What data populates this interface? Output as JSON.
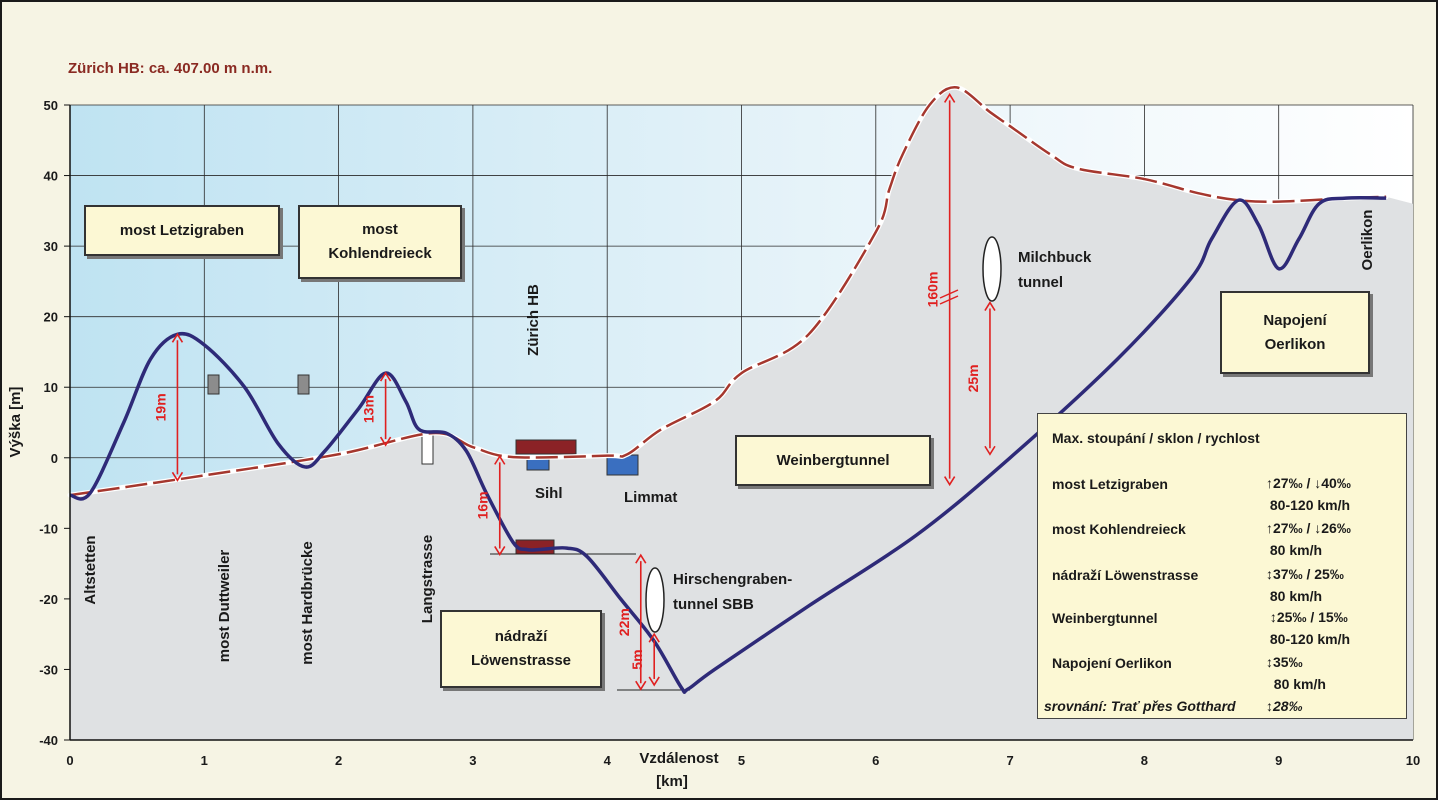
{
  "header": "Zürich HB: ca. 407.00 m n.m.",
  "chart_data": {
    "type": "line",
    "xlabel": "Vzdálenost\n[km]",
    "ylabel": "Výška [m]",
    "xlim": [
      0,
      10
    ],
    "ylim": [
      -40,
      50
    ],
    "xticks": [
      "0",
      "1",
      "2",
      "3",
      "4",
      "5",
      "6",
      "7",
      "8",
      "9",
      "10"
    ],
    "yticks": [
      "50",
      "40",
      "30",
      "20",
      "10",
      "0",
      "-10",
      "-20",
      "-30",
      "-40"
    ],
    "grid": true,
    "series": [
      {
        "name": "track",
        "color": "#2e2a78",
        "points": [
          [
            0,
            -5.3
          ],
          [
            0.15,
            -5
          ],
          [
            0.4,
            5
          ],
          [
            0.6,
            14
          ],
          [
            0.8,
            17.5
          ],
          [
            1.0,
            16
          ],
          [
            1.3,
            10
          ],
          [
            1.55,
            2
          ],
          [
            1.75,
            -1.3
          ],
          [
            1.9,
            1
          ],
          [
            2.15,
            7
          ],
          [
            2.35,
            12
          ],
          [
            2.5,
            8
          ],
          [
            2.6,
            4
          ],
          [
            2.8,
            3.5
          ],
          [
            2.95,
            1
          ],
          [
            3.1,
            -5
          ],
          [
            3.3,
            -12
          ],
          [
            3.4,
            -13
          ],
          [
            3.5,
            -13
          ],
          [
            3.7,
            -12.8
          ],
          [
            3.85,
            -14
          ],
          [
            4.1,
            -20
          ],
          [
            4.35,
            -26
          ],
          [
            4.55,
            -32.5
          ],
          [
            4.6,
            -32.8
          ],
          [
            4.8,
            -30
          ],
          [
            5.5,
            -21
          ],
          [
            6.3,
            -11
          ],
          [
            7.0,
            0
          ],
          [
            7.8,
            14
          ],
          [
            8.35,
            25.5
          ],
          [
            8.5,
            31
          ],
          [
            8.7,
            36.5
          ],
          [
            8.85,
            33
          ],
          [
            9.0,
            26.8
          ],
          [
            9.15,
            31
          ],
          [
            9.3,
            36
          ],
          [
            9.5,
            36.8
          ],
          [
            9.8,
            36.8
          ]
        ]
      },
      {
        "name": "terrain",
        "color": "#a5372e",
        "dashed": true,
        "points": [
          [
            0,
            -5.3
          ],
          [
            1.0,
            -2.5
          ],
          [
            2.0,
            0.5
          ],
          [
            2.7,
            3.5
          ],
          [
            3.0,
            1.5
          ],
          [
            3.3,
            0.1
          ],
          [
            4.0,
            0.3
          ],
          [
            4.15,
            0.5
          ],
          [
            4.4,
            4
          ],
          [
            4.8,
            8
          ],
          [
            5.0,
            12
          ],
          [
            5.5,
            17.5
          ],
          [
            6.0,
            32
          ],
          [
            6.1,
            38
          ],
          [
            6.2,
            43
          ],
          [
            6.4,
            50
          ],
          [
            6.6,
            52.5
          ],
          [
            6.85,
            49
          ],
          [
            7.0,
            47
          ],
          [
            7.3,
            43
          ],
          [
            7.5,
            41
          ],
          [
            8.0,
            39.5
          ],
          [
            8.4,
            37.5
          ],
          [
            8.7,
            36.5
          ],
          [
            9.0,
            36.3
          ],
          [
            9.5,
            36.8
          ],
          [
            9.8,
            37
          ]
        ]
      }
    ],
    "annotations": [
      {
        "text": "19m",
        "x": 0.8,
        "y_top": 17.5,
        "y_bottom": -3.2
      },
      {
        "text": "13m",
        "x": 2.35,
        "y_top": 12,
        "y_bottom": 1.8
      },
      {
        "text": "16m",
        "x": 3.2,
        "y_top": 0.2,
        "y_bottom": -13.7
      },
      {
        "text": "22m",
        "x": 4.25,
        "y_top": -13.8,
        "y_bottom": -32.8
      },
      {
        "text": "5m",
        "x": 4.35,
        "y_top": -25,
        "y_bottom": -32.2
      },
      {
        "text": "160m",
        "x": 6.55,
        "y_top": 51.5,
        "y_bottom": -3.8
      },
      {
        "text": "25m",
        "x": 6.85,
        "y_top": 22,
        "y_bottom": 0.5
      }
    ],
    "places": [
      "Altstetten",
      "most Duttweiler",
      "most Hardbrücke",
      "Langstrasse",
      "Zürich HB",
      "Sihl",
      "Limmat",
      "Oerlikon",
      "Milchbuck\ntunnel",
      "Hirschengraben-\ntunnel SBB"
    ],
    "boxes": [
      "most Letzigraben",
      "most\nKohlendreieck",
      "nádraží\nLöwenstrasse",
      "Weinbergtunnel",
      "Napojení\nOerlikon"
    ]
  },
  "legend": {
    "title": "Max. stoupání / sklon / rychlost",
    "rows": [
      {
        "name": "most Letzigraben",
        "value": "↑27‰ / ↓40‰\n 80-120 km/h"
      },
      {
        "name": "most Kohlendreieck",
        "value": "↑27‰ / ↓26‰\n 80 km/h"
      },
      {
        "name": "nádraží Löwenstrasse",
        "value": "↕37‰ / 25‰\n 80 km/h"
      },
      {
        "name": "Weinbergtunnel",
        "value": " ↕25‰ / 15‰\n 80-120 km/h"
      },
      {
        "name": "Napojení  Oerlikon",
        "value": "↕35‰\n  80 km/h"
      }
    ],
    "comparison": "srovnání: Trať přes Gotthard",
    "comparison_value": "↕28‰"
  }
}
